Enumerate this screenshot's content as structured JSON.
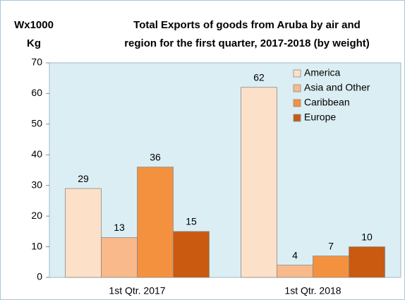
{
  "chart_data": {
    "type": "bar",
    "title": [
      "Total Exports of goods from Aruba by air and",
      "region for the first quarter, 2017-2018 (by weight)"
    ],
    "ylabel": [
      "Wx1000",
      "Kg"
    ],
    "categories": [
      "1st Qtr. 2017",
      "1st Qtr. 2018"
    ],
    "series": [
      {
        "name": "America",
        "color": "#fde0c8",
        "values": [
          29,
          62
        ]
      },
      {
        "name": "Asia and Other",
        "color": "#f9b98a",
        "values": [
          13,
          4
        ]
      },
      {
        "name": "Caribbean",
        "color": "#f4913f",
        "values": [
          36,
          7
        ]
      },
      {
        "name": "Europe",
        "color": "#c95a10",
        "values": [
          15,
          10
        ]
      }
    ],
    "ylim": [
      0,
      70
    ],
    "yticks": [
      0,
      10,
      20,
      30,
      40,
      50,
      60,
      70
    ],
    "grid": false,
    "legend": "upper right"
  }
}
